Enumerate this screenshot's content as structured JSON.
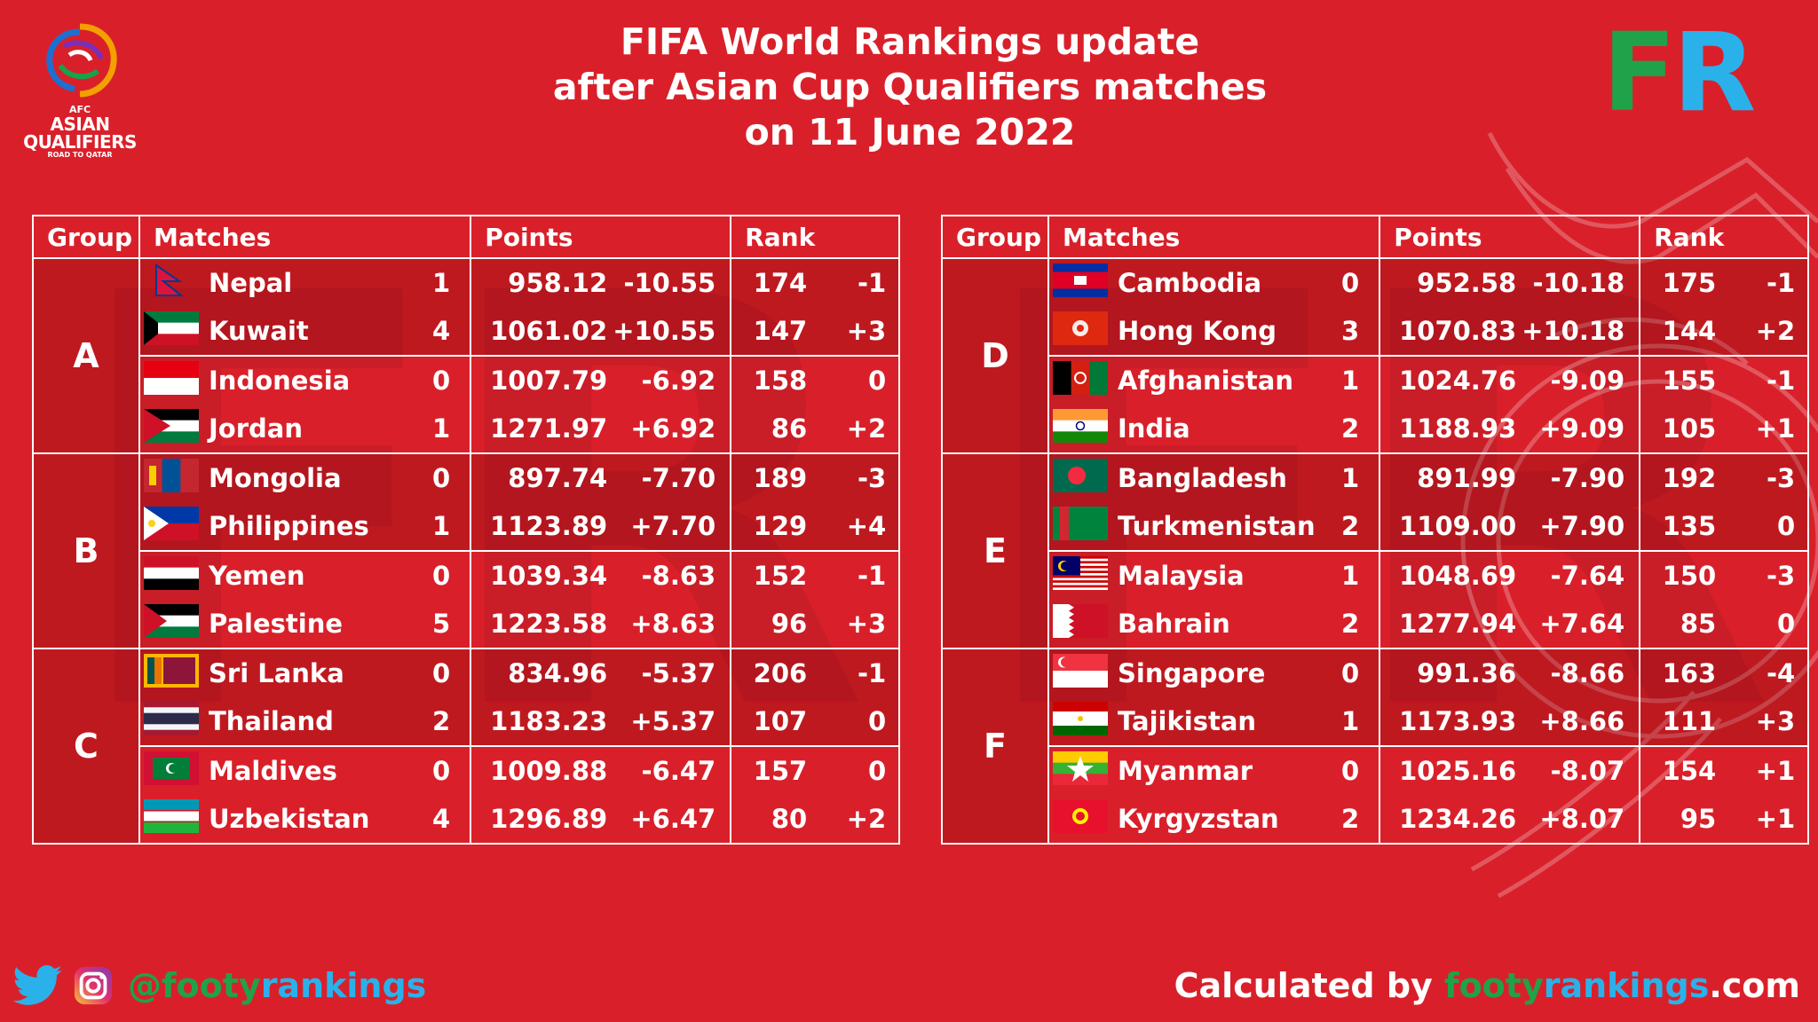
{
  "title": {
    "line1": "FIFA World Rankings update",
    "line2": "after Asian Cup Qualifiers matches",
    "line3": "on 11 June 2022"
  },
  "logo": {
    "line1": "AFC",
    "line2": "ASIAN",
    "line3": "QUALIFIERS",
    "line4": "ROAD TO QATAR"
  },
  "brand_mark": {
    "f": "F",
    "r": "R"
  },
  "headers": {
    "group": "Group",
    "matches": "Matches",
    "points": "Points",
    "rank": "Rank"
  },
  "colors": {
    "background": "#d9202a",
    "green": "#1fa24a",
    "blue": "#2ab1ea"
  },
  "tables": [
    {
      "groups": [
        {
          "label": "A",
          "rows": [
            {
              "flag": "nepal-flag",
              "team": "Nepal",
              "matches": "1",
              "points": "958.12",
              "points_change": "-10.55",
              "rank": "174",
              "rank_change": "-1"
            },
            {
              "flag": "kuwait-flag",
              "team": "Kuwait",
              "matches": "4",
              "points": "1061.02",
              "points_change": "+10.55",
              "rank": "147",
              "rank_change": "+3"
            },
            {
              "flag": "indonesia-flag",
              "team": "Indonesia",
              "matches": "0",
              "points": "1007.79",
              "points_change": "-6.92",
              "rank": "158",
              "rank_change": "0"
            },
            {
              "flag": "jordan-flag",
              "team": "Jordan",
              "matches": "1",
              "points": "1271.97",
              "points_change": "+6.92",
              "rank": "86",
              "rank_change": "+2"
            }
          ]
        },
        {
          "label": "B",
          "rows": [
            {
              "flag": "mongolia-flag",
              "team": "Mongolia",
              "matches": "0",
              "points": "897.74",
              "points_change": "-7.70",
              "rank": "189",
              "rank_change": "-3"
            },
            {
              "flag": "philippines-flag",
              "team": "Philippines",
              "matches": "1",
              "points": "1123.89",
              "points_change": "+7.70",
              "rank": "129",
              "rank_change": "+4"
            },
            {
              "flag": "yemen-flag",
              "team": "Yemen",
              "matches": "0",
              "points": "1039.34",
              "points_change": "-8.63",
              "rank": "152",
              "rank_change": "-1"
            },
            {
              "flag": "palestine-flag",
              "team": "Palestine",
              "matches": "5",
              "points": "1223.58",
              "points_change": "+8.63",
              "rank": "96",
              "rank_change": "+3"
            }
          ]
        },
        {
          "label": "C",
          "rows": [
            {
              "flag": "sri-lanka-flag",
              "team": "Sri Lanka",
              "matches": "0",
              "points": "834.96",
              "points_change": "-5.37",
              "rank": "206",
              "rank_change": "-1"
            },
            {
              "flag": "thailand-flag",
              "team": "Thailand",
              "matches": "2",
              "points": "1183.23",
              "points_change": "+5.37",
              "rank": "107",
              "rank_change": "0"
            },
            {
              "flag": "maldives-flag",
              "team": "Maldives",
              "matches": "0",
              "points": "1009.88",
              "points_change": "-6.47",
              "rank": "157",
              "rank_change": "0"
            },
            {
              "flag": "uzbekistan-flag",
              "team": "Uzbekistan",
              "matches": "4",
              "points": "1296.89",
              "points_change": "+6.47",
              "rank": "80",
              "rank_change": "+2"
            }
          ]
        }
      ]
    },
    {
      "groups": [
        {
          "label": "D",
          "rows": [
            {
              "flag": "cambodia-flag",
              "team": "Cambodia",
              "matches": "0",
              "points": "952.58",
              "points_change": "-10.18",
              "rank": "175",
              "rank_change": "-1"
            },
            {
              "flag": "hong-kong-flag",
              "team": "Hong Kong",
              "matches": "3",
              "points": "1070.83",
              "points_change": "+10.18",
              "rank": "144",
              "rank_change": "+2"
            },
            {
              "flag": "afghanistan-flag",
              "team": "Afghanistan",
              "matches": "1",
              "points": "1024.76",
              "points_change": "-9.09",
              "rank": "155",
              "rank_change": "-1"
            },
            {
              "flag": "india-flag",
              "team": "India",
              "matches": "2",
              "points": "1188.93",
              "points_change": "+9.09",
              "rank": "105",
              "rank_change": "+1"
            }
          ]
        },
        {
          "label": "E",
          "rows": [
            {
              "flag": "bangladesh-flag",
              "team": "Bangladesh",
              "matches": "1",
              "points": "891.99",
              "points_change": "-7.90",
              "rank": "192",
              "rank_change": "-3"
            },
            {
              "flag": "turkmenistan-flag",
              "team": "Turkmenistan",
              "matches": "2",
              "points": "1109.00",
              "points_change": "+7.90",
              "rank": "135",
              "rank_change": "0"
            },
            {
              "flag": "malaysia-flag",
              "team": "Malaysia",
              "matches": "1",
              "points": "1048.69",
              "points_change": "-7.64",
              "rank": "150",
              "rank_change": "-3"
            },
            {
              "flag": "bahrain-flag",
              "team": "Bahrain",
              "matches": "2",
              "points": "1277.94",
              "points_change": "+7.64",
              "rank": "85",
              "rank_change": "0"
            }
          ]
        },
        {
          "label": "F",
          "rows": [
            {
              "flag": "singapore-flag",
              "team": "Singapore",
              "matches": "0",
              "points": "991.36",
              "points_change": "-8.66",
              "rank": "163",
              "rank_change": "-4"
            },
            {
              "flag": "tajikistan-flag",
              "team": "Tajikistan",
              "matches": "1",
              "points": "1173.93",
              "points_change": "+8.66",
              "rank": "111",
              "rank_change": "+3"
            },
            {
              "flag": "myanmar-flag",
              "team": "Myanmar",
              "matches": "0",
              "points": "1025.16",
              "points_change": "-8.07",
              "rank": "154",
              "rank_change": "+1"
            },
            {
              "flag": "kyrgyzstan-flag",
              "team": "Kyrgyzstan",
              "matches": "2",
              "points": "1234.26",
              "points_change": "+8.07",
              "rank": "95",
              "rank_change": "+1"
            }
          ]
        }
      ]
    }
  ],
  "footer": {
    "twitter_icon": "twitter-icon",
    "instagram_icon": "instagram-icon",
    "handle_prefix": "@footy",
    "handle_suffix": "rankings",
    "credit_prefix": "Calculated by ",
    "credit_site1": "footy",
    "credit_site2": "rankings",
    "credit_site3": ".com"
  }
}
